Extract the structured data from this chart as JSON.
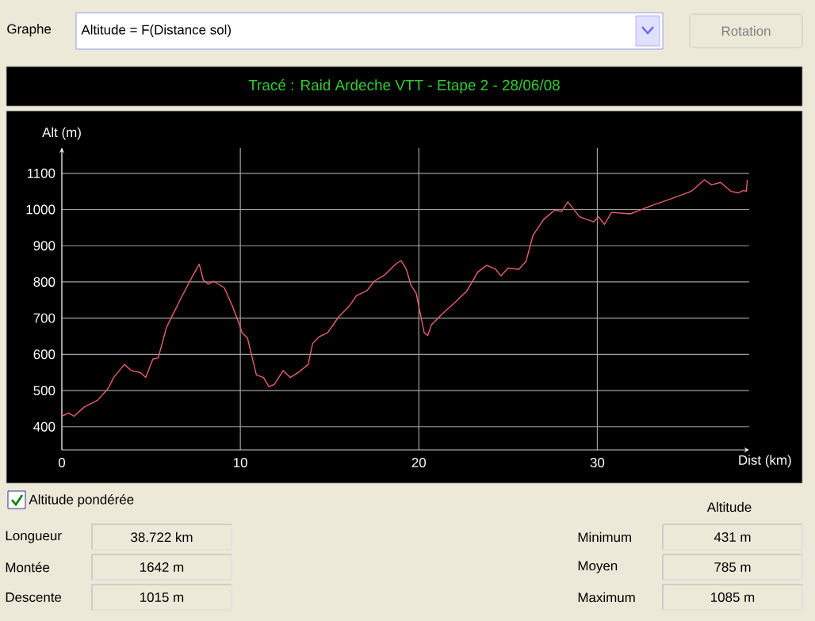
{
  "chart_data": {
    "type": "line",
    "title": "Tracé : Raid Ardeche VTT - Etape 2 - 28/06/08",
    "xlabel": "Dist (km)",
    "ylabel": "Alt (m)",
    "x": [
      0,
      0.38,
      0.68,
      1.27,
      2.0,
      2.6,
      2.9,
      3.5,
      3.9,
      4.4,
      4.7,
      5.1,
      5.4,
      5.86,
      6.3,
      6.75,
      7.2,
      7.54,
      7.7,
      7.93,
      8.2,
      8.5,
      9.1,
      9.56,
      9.9,
      10.1,
      10.4,
      10.9,
      11.3,
      11.6,
      11.9,
      12.4,
      12.8,
      13.25,
      13.8,
      14.05,
      14.4,
      14.9,
      15.5,
      16.1,
      16.5,
      17.1,
      17.5,
      18.1,
      18.7,
      19.0,
      19.3,
      19.56,
      19.85,
      20.3,
      20.5,
      20.7,
      21.3,
      22.1,
      22.7,
      23.3,
      23.8,
      24.3,
      24.6,
      25.0,
      25.6,
      26.0,
      26.4,
      27.0,
      27.6,
      28.0,
      28.35,
      29.0,
      29.8,
      30.07,
      30.4,
      30.8,
      31.85,
      33.0,
      34.2,
      35.25,
      36.0,
      36.4,
      36.9,
      37.5,
      37.9,
      38.2,
      38.35,
      38.4
    ],
    "series": [
      {
        "color": "#e8606e",
        "values": [
          429,
          438,
          429,
          455,
          473,
          506,
          536,
          572,
          555,
          550,
          536,
          587,
          590,
          674,
          718,
          762,
          805,
          835,
          849,
          805,
          794,
          802,
          784,
          733,
          689,
          660,
          645,
          543,
          536,
          511,
          517,
          555,
          536,
          550,
          572,
          630,
          648,
          660,
          703,
          733,
          762,
          776,
          802,
          820,
          849,
          859,
          835,
          791,
          769,
          660,
          652,
          681,
          711,
          747,
          776,
          827,
          846,
          835,
          817,
          838,
          835,
          856,
          929,
          973,
          998,
          995,
          1021,
          980,
          966,
          980,
          959,
          992,
          988,
          1010,
          1031,
          1050,
          1082,
          1068,
          1075,
          1050,
          1046,
          1053,
          1050,
          1082
        ]
      }
    ],
    "xlim": [
      0,
      38.5
    ],
    "ylim": [
      336,
      1170
    ],
    "xticks": [
      0,
      10,
      20,
      30
    ],
    "yticks": [
      400,
      500,
      600,
      700,
      800,
      900,
      1000,
      1100
    ],
    "grid": true,
    "annotations": [
      "Graphe",
      "Altitude = F(Distance sol)",
      "Rotation",
      "Altitude pondérée",
      "Altitude",
      "Longueur",
      "38.722 km",
      "Montée",
      "1642 m",
      "Descente",
      "1015 m",
      "Minimum",
      "431 m",
      "Moyen",
      "785 m",
      "Maximum",
      "1085 m"
    ]
  }
}
